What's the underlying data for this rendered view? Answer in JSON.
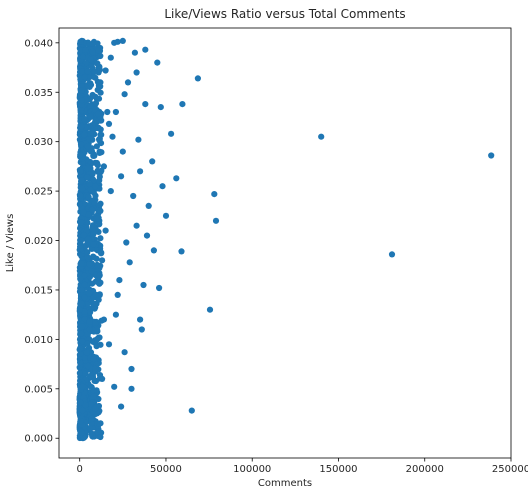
{
  "chart_data": {
    "type": "scatter",
    "title": "Like/Views Ratio versus Total Comments",
    "xlabel": "Comments",
    "ylabel": "Like / Views",
    "xlim": [
      -12000,
      250000
    ],
    "ylim": [
      -0.002,
      0.0415
    ],
    "xticks": [
      0,
      50000,
      100000,
      150000,
      200000,
      250000
    ],
    "xtick_labels": [
      "0",
      "50000",
      "100000",
      "150000",
      "200000",
      "250000"
    ],
    "yticks": [
      0.0,
      0.005,
      0.01,
      0.015,
      0.02,
      0.025,
      0.03,
      0.035,
      0.04
    ],
    "ytick_labels": [
      "0.000",
      "0.005",
      "0.010",
      "0.015",
      "0.020",
      "0.025",
      "0.030",
      "0.035",
      "0.040"
    ],
    "grid": false,
    "marker_color": "#1f77b4",
    "series": [
      {
        "points": [
          [
            140000,
            0.0305
          ],
          [
            238500,
            0.0286
          ],
          [
            181000,
            0.0186
          ],
          [
            68500,
            0.0364
          ],
          [
            59500,
            0.0338
          ],
          [
            53000,
            0.0308
          ],
          [
            45000,
            0.038
          ],
          [
            47000,
            0.0335
          ],
          [
            38000,
            0.0393
          ],
          [
            78000,
            0.0247
          ],
          [
            79000,
            0.022
          ],
          [
            56000,
            0.0263
          ],
          [
            59000,
            0.0189
          ],
          [
            75500,
            0.013
          ],
          [
            65000,
            0.0028
          ],
          [
            46000,
            0.0152
          ],
          [
            38000,
            0.0338
          ],
          [
            34000,
            0.0302
          ],
          [
            30000,
            0.007
          ],
          [
            30000,
            0.005
          ],
          [
            24000,
            0.0032
          ],
          [
            36000,
            0.011
          ],
          [
            40000,
            0.0235
          ],
          [
            42000,
            0.028
          ],
          [
            28000,
            0.036
          ],
          [
            32000,
            0.039
          ],
          [
            25000,
            0.0402
          ],
          [
            22000,
            0.0401
          ],
          [
            20000,
            0.04
          ],
          [
            18000,
            0.0385
          ],
          [
            26000,
            0.0348
          ],
          [
            24000,
            0.0265
          ],
          [
            33000,
            0.0215
          ],
          [
            29000,
            0.0178
          ],
          [
            22000,
            0.0145
          ],
          [
            17000,
            0.0095
          ],
          [
            15000,
            0.021
          ],
          [
            19000,
            0.0305
          ],
          [
            35000,
            0.027
          ],
          [
            31000,
            0.0245
          ],
          [
            27000,
            0.0198
          ],
          [
            23000,
            0.016
          ],
          [
            21000,
            0.0125
          ],
          [
            26000,
            0.0087
          ],
          [
            20000,
            0.0052
          ],
          [
            16000,
            0.033
          ],
          [
            14000,
            0.0275
          ],
          [
            12000,
            0.023
          ],
          [
            13000,
            0.018
          ],
          [
            11000,
            0.014
          ],
          [
            10000,
            0.011
          ],
          [
            9000,
            0.007
          ],
          [
            8000,
            0.0042
          ],
          [
            7000,
            0.002
          ],
          [
            12000,
            0.036
          ],
          [
            15000,
            0.0372
          ],
          [
            11000,
            0.0392
          ],
          [
            17000,
            0.0318
          ],
          [
            25000,
            0.029
          ],
          [
            37000,
            0.0155
          ],
          [
            43000,
            0.019
          ],
          [
            48000,
            0.0255
          ],
          [
            50000,
            0.0225
          ],
          [
            21000,
            0.033
          ],
          [
            18000,
            0.025
          ],
          [
            14000,
            0.012
          ],
          [
            13000,
            0.006
          ],
          [
            9000,
            0.003
          ],
          [
            6000,
            0.001
          ],
          [
            33000,
            0.037
          ],
          [
            39000,
            0.0205
          ],
          [
            35000,
            0.012
          ]
        ]
      }
    ]
  }
}
